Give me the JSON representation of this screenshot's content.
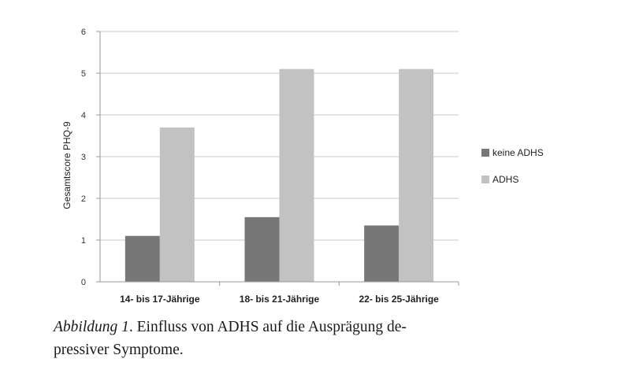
{
  "chart_data": {
    "type": "bar",
    "categories": [
      "14- bis 17-Jährige",
      "18- bis 21-Jährige",
      "22- bis 25-Jährige"
    ],
    "series": [
      {
        "name": "keine ADHS",
        "values": [
          1.1,
          1.55,
          1.35
        ],
        "color": "#777777"
      },
      {
        "name": "ADHS",
        "values": [
          3.7,
          5.1,
          5.1
        ],
        "color": "#c2c2c2"
      }
    ],
    "xlabel": "",
    "ylabel": "Gesamtscore PHQ-9",
    "ylim": [
      0,
      6
    ],
    "yticks": [
      0,
      1,
      2,
      3,
      4,
      5,
      6
    ],
    "grid": true,
    "legend_position": "right"
  },
  "caption": {
    "label": "Abbildung 1",
    "text_line1": ". Einfluss von ADHS auf die Ausprägung de-",
    "text_line2": "pressiver Symptome."
  }
}
